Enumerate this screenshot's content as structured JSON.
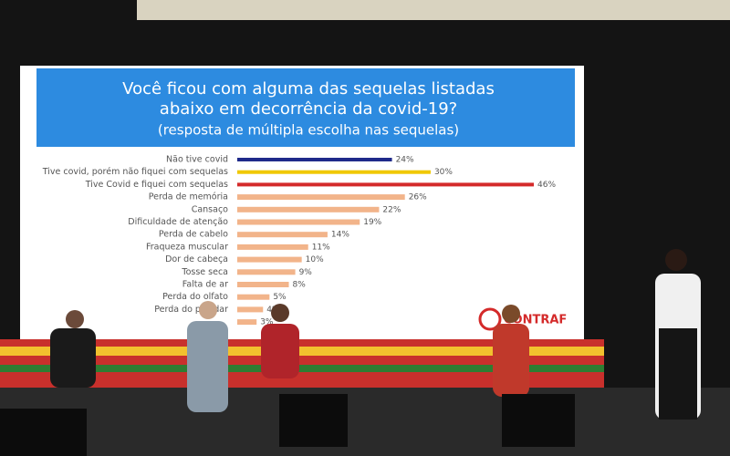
{
  "chart_data": {
    "type": "bar",
    "orientation": "horizontal",
    "title": "Você ficou com alguma das sequelas listadas abaixo em decorrência da covid-19?",
    "subtitle": "(resposta de múltipla escolha nas sequelas)",
    "categories": [
      "Não tive covid",
      "Tive covid, porém não fiquei com sequelas",
      "Tive Covid e fiquei com sequelas",
      "Perda de memória",
      "Cansaço",
      "Dificuldade de atenção",
      "Perda de cabelo",
      "Fraqueza muscular",
      "Dor de cabeça",
      "Tosse seca",
      "Falta de ar",
      "Perda do olfato",
      "Perda do paladar",
      null
    ],
    "values": [
      24,
      30,
      46,
      26,
      22,
      19,
      14,
      11,
      10,
      9,
      8,
      5,
      4,
      3
    ],
    "value_labels": [
      "24%",
      "30%",
      "46%",
      "26%",
      "22%",
      "19%",
      "14%",
      "11%",
      "10%",
      "9%",
      "8%",
      "5%",
      "4%",
      "3%"
    ],
    "colors": [
      "#1f2a8a",
      "#f0c800",
      "#d42a2a",
      "#f2b48a",
      "#f2b48a",
      "#f2b48a",
      "#f2b48a",
      "#f2b48a",
      "#f2b48a",
      "#f2b48a",
      "#f2b48a",
      "#f2b48a",
      "#f2b48a",
      "#f2b48a"
    ],
    "logo": "CONTRAF"
  }
}
